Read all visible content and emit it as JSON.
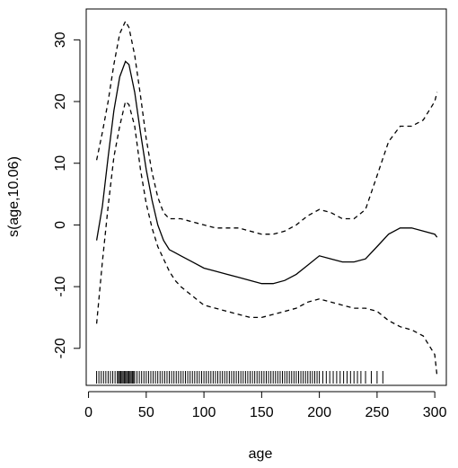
{
  "chart_data": {
    "type": "line",
    "title": "",
    "xlabel": "age",
    "ylabel": "s(age,10.06)",
    "xlim": [
      -2,
      310
    ],
    "ylim": [
      -26,
      35
    ],
    "xticks": [
      0,
      50,
      100,
      150,
      200,
      250,
      300
    ],
    "yticks": [
      -20,
      -10,
      0,
      10,
      20,
      30
    ],
    "xtick_labels": [
      "0",
      "50",
      "100",
      "150",
      "200",
      "250",
      "300"
    ],
    "ytick_labels": [
      "-20",
      "-10",
      "0",
      "10",
      "20",
      "30"
    ],
    "grid": false,
    "legend": "none",
    "series": [
      {
        "style": "solid",
        "x": [
          7,
          12,
          17,
          22,
          27,
          32,
          35,
          40,
          45,
          50,
          55,
          60,
          65,
          70,
          75,
          80,
          90,
          100,
          110,
          120,
          130,
          140,
          150,
          160,
          170,
          180,
          190,
          200,
          210,
          220,
          230,
          240,
          250,
          260,
          270,
          280,
          290,
          300,
          302
        ],
        "y": [
          -2.5,
          3,
          11,
          18.5,
          24,
          26.5,
          26,
          21.5,
          15,
          9,
          4,
          0,
          -2.5,
          -4,
          -4.5,
          -5,
          -6,
          -7,
          -7.5,
          -8,
          -8.5,
          -9,
          -9.5,
          -9.5,
          -9,
          -8,
          -6.5,
          -5,
          -5.5,
          -6,
          -6,
          -5.5,
          -3.5,
          -1.5,
          -0.5,
          -0.5,
          -1,
          -1.5,
          -2
        ]
      },
      {
        "style": "dashed",
        "x": [
          7,
          12,
          17,
          22,
          27,
          32,
          35,
          40,
          45,
          50,
          55,
          60,
          65,
          70,
          75,
          80,
          90,
          100,
          110,
          120,
          130,
          140,
          150,
          160,
          170,
          180,
          190,
          200,
          210,
          220,
          230,
          240,
          250,
          260,
          270,
          280,
          290,
          300,
          302
        ],
        "y": [
          10.5,
          15,
          20,
          26,
          31,
          33,
          32,
          27.5,
          21,
          14,
          8.5,
          4.5,
          2,
          1,
          1,
          1,
          0.5,
          0,
          -0.5,
          -0.5,
          -0.5,
          -1,
          -1.5,
          -1.5,
          -1,
          0,
          1.5,
          2.5,
          2,
          1,
          1,
          2.5,
          8,
          13.5,
          16,
          16,
          17,
          20,
          21.5
        ]
      },
      {
        "style": "dashed",
        "x": [
          7,
          12,
          17,
          22,
          27,
          32,
          35,
          40,
          45,
          50,
          55,
          60,
          65,
          70,
          75,
          80,
          90,
          100,
          110,
          120,
          130,
          140,
          150,
          160,
          170,
          180,
          190,
          200,
          210,
          220,
          230,
          240,
          250,
          260,
          270,
          280,
          290,
          300,
          302
        ],
        "y": [
          -16,
          -6,
          3,
          11,
          16,
          20,
          19.5,
          16,
          9,
          3.5,
          -0.5,
          -3.5,
          -5.5,
          -7.5,
          -9,
          -10,
          -11.5,
          -13,
          -13.5,
          -14,
          -14.5,
          -15,
          -15,
          -14.5,
          -14,
          -13.5,
          -12.5,
          -12,
          -12.5,
          -13,
          -13.5,
          -13.5,
          -14,
          -15.5,
          -16.5,
          -17,
          -18,
          -21,
          -24.5
        ]
      }
    ],
    "rug": [
      7,
      9,
      11,
      13,
      15,
      17,
      19,
      21,
      23,
      25,
      26,
      27,
      28,
      29,
      30,
      31,
      32,
      33,
      34,
      35,
      36,
      37,
      38,
      39,
      40,
      42,
      44,
      46,
      48,
      50,
      52,
      54,
      56,
      58,
      60,
      62,
      64,
      66,
      68,
      70,
      72,
      74,
      76,
      78,
      80,
      82,
      84,
      86,
      88,
      90,
      92,
      94,
      96,
      98,
      100,
      102,
      104,
      106,
      108,
      110,
      112,
      114,
      116,
      118,
      120,
      122,
      124,
      126,
      128,
      130,
      132,
      134,
      136,
      138,
      140,
      142,
      144,
      146,
      148,
      150,
      152,
      154,
      156,
      158,
      160,
      162,
      164,
      166,
      168,
      170,
      172,
      174,
      176,
      178,
      180,
      182,
      184,
      186,
      188,
      190,
      192,
      194,
      196,
      198,
      200,
      203,
      206,
      209,
      212,
      215,
      218,
      221,
      224,
      227,
      230,
      233,
      236,
      240,
      245,
      250,
      255
    ]
  }
}
